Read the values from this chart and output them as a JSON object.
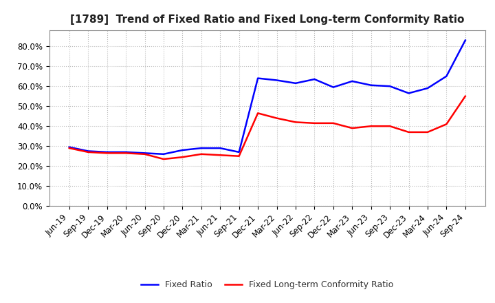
{
  "title": "[1789]  Trend of Fixed Ratio and Fixed Long-term Conformity Ratio",
  "x_labels": [
    "Jun-19",
    "Sep-19",
    "Dec-19",
    "Mar-20",
    "Jun-20",
    "Sep-20",
    "Dec-20",
    "Mar-21",
    "Jun-21",
    "Sep-21",
    "Dec-21",
    "Mar-22",
    "Jun-22",
    "Sep-22",
    "Dec-22",
    "Mar-23",
    "Jun-23",
    "Sep-23",
    "Dec-23",
    "Mar-24",
    "Jun-24",
    "Sep-24"
  ],
  "fixed_ratio": [
    29.5,
    27.5,
    27.0,
    27.0,
    26.5,
    26.0,
    28.0,
    29.0,
    29.0,
    27.0,
    64.0,
    63.0,
    61.5,
    63.5,
    59.5,
    62.5,
    60.5,
    60.0,
    56.5,
    59.0,
    65.0,
    83.0
  ],
  "fixed_lt_ratio": [
    29.0,
    27.0,
    26.5,
    26.5,
    26.0,
    23.5,
    24.5,
    26.0,
    25.5,
    25.0,
    46.5,
    44.0,
    42.0,
    41.5,
    41.5,
    39.0,
    40.0,
    40.0,
    37.0,
    37.0,
    41.0,
    55.0
  ],
  "fixed_ratio_color": "#0000FF",
  "fixed_lt_ratio_color": "#FF0000",
  "ylim": [
    0,
    88
  ],
  "yticks": [
    0,
    10,
    20,
    30,
    40,
    50,
    60,
    70,
    80
  ],
  "background_color": "#FFFFFF",
  "grid_color": "#AAAAAA",
  "legend_fixed": "Fixed Ratio",
  "legend_lt": "Fixed Long-term Conformity Ratio",
  "title_fontsize": 11,
  "tick_fontsize": 8.5,
  "line_width": 1.8
}
